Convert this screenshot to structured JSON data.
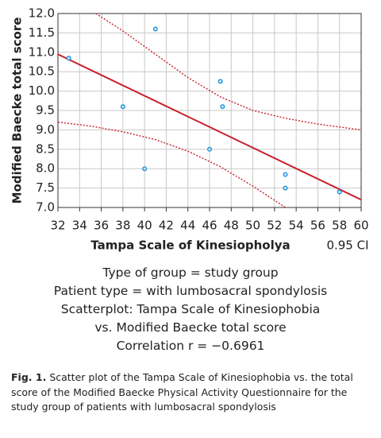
{
  "chart_data": {
    "type": "scatter",
    "ylabel": "Modified Baecke total score",
    "xlabel": "Tampa Scale of Kinesiopholya",
    "ci_label": "0.95 CI",
    "x": [
      33,
      38,
      40,
      41,
      46,
      47,
      47.2,
      53,
      53,
      58
    ],
    "values": [
      10.85,
      9.6,
      8.0,
      11.6,
      8.5,
      10.25,
      9.6,
      7.85,
      7.5,
      7.4
    ],
    "color": "#1a90d8",
    "lines": [
      {
        "x": [
          32,
          60
        ],
        "values": [
          10.95,
          7.2
        ],
        "color": "#c8202a",
        "dashed": false
      },
      {
        "x": [
          35.5,
          38,
          41,
          44,
          47,
          50,
          53,
          56,
          60
        ],
        "values": [
          12.0,
          11.55,
          10.95,
          10.35,
          9.85,
          9.5,
          9.3,
          9.15,
          9.0
        ],
        "color": "#c8202a",
        "dashed": true
      },
      {
        "x": [
          32,
          35,
          38,
          41,
          44,
          47,
          50,
          53
        ],
        "values": [
          9.2,
          9.1,
          8.95,
          8.75,
          8.45,
          8.05,
          7.55,
          7.0
        ],
        "color": "#c8202a",
        "dashed": true
      }
    ],
    "xlim": [
      32,
      60
    ],
    "ylim": [
      7,
      12
    ],
    "xticks": [
      32,
      34,
      36,
      38,
      40,
      42,
      44,
      46,
      48,
      50,
      52,
      54,
      56,
      58,
      60
    ],
    "yticks": [
      {
        "value": 7,
        "label": "7.0"
      },
      {
        "value": 7.5,
        "label": "7.5"
      },
      {
        "value": 8,
        "label": "8.0"
      },
      {
        "value": 8.5,
        "label": "8.5"
      },
      {
        "value": 9,
        "label": "9.0"
      },
      {
        "value": 9.5,
        "label": "9.5"
      },
      {
        "value": 10,
        "label": "10.0"
      },
      {
        "value": 10.5,
        "label": "10.5"
      },
      {
        "value": 11,
        "label": "11.0"
      },
      {
        "value": 11.5,
        "label": "11.5"
      },
      {
        "value": 12,
        "label": "12.0"
      }
    ],
    "grid": true,
    "info": [
      "Type of group = study group",
      "Patient type = with lumbosacral spondylosis",
      "Scatterplot: Tampa Scale of Kinesiophobia",
      "vs. Modified Baecke total score",
      "Correlation r = −0.6961"
    ]
  },
  "caption": {
    "label": "Fig. 1.",
    "text": "Scatter plot of the Tampa Scale of Kinesiophobia vs. the total score of the Modified Baecke Physical Activity Questionnaire for the study group of patients with lumbosacral spondylosis"
  }
}
